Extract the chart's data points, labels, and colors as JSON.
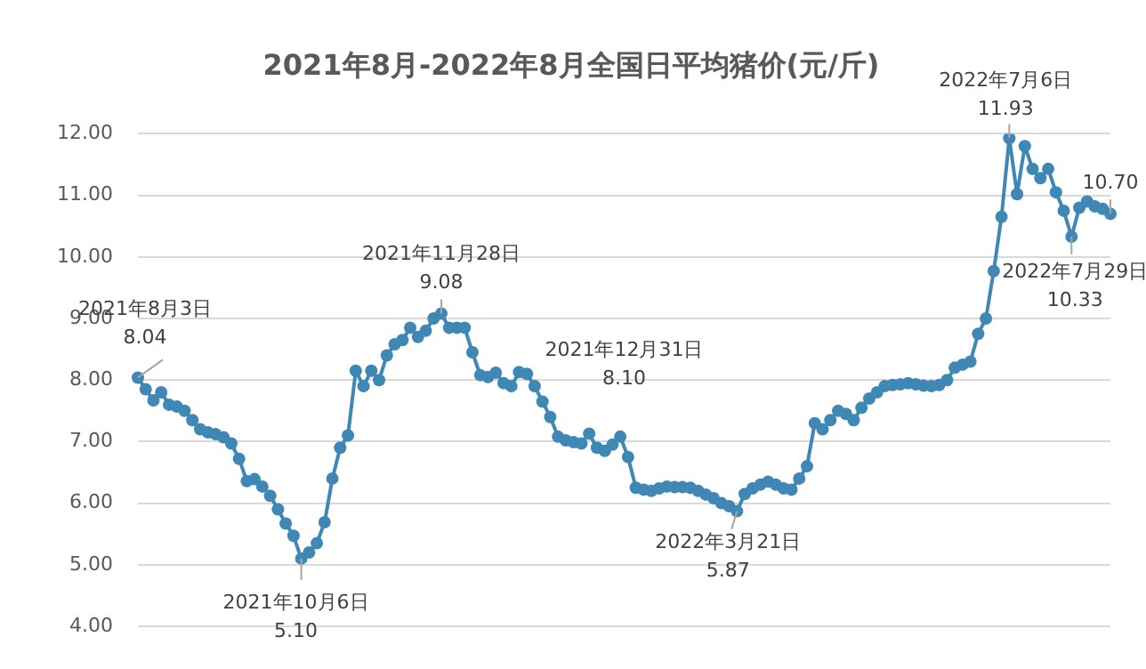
{
  "chart_data": {
    "type": "line",
    "title": "2021年8月-2022年8月全国日平均猪价(元/斤)",
    "categories": [
      null,
      null,
      null,
      null,
      null,
      null,
      null,
      null,
      null,
      null,
      null,
      null,
      null,
      null,
      null,
      null,
      null,
      null,
      null,
      null,
      null,
      null,
      null,
      null,
      null,
      null,
      null,
      null,
      null,
      null,
      null,
      null,
      null,
      null,
      null,
      null,
      null,
      null,
      null,
      null,
      null,
      null,
      null,
      null,
      null,
      null,
      null,
      null,
      null,
      null,
      null,
      null,
      null,
      null,
      null,
      null,
      null,
      null,
      null,
      null,
      null,
      null,
      null,
      null,
      null,
      null,
      null,
      null,
      null,
      null,
      null,
      null,
      null,
      null,
      null,
      null,
      null,
      null,
      null,
      null,
      null,
      null,
      null,
      null,
      null,
      null,
      null,
      null,
      null,
      null,
      null,
      null,
      null,
      null,
      null,
      null,
      null,
      null,
      null,
      null,
      null,
      null,
      null,
      null,
      null,
      null,
      null,
      null,
      null,
      null,
      null,
      null,
      null,
      null,
      null,
      null,
      null,
      null,
      null,
      null,
      null,
      null,
      null,
      null,
      null,
      null
    ],
    "series": [
      {
        "color": "#3f87b5",
        "values": [
          8.04,
          7.85,
          7.67,
          7.8,
          7.6,
          7.57,
          7.5,
          7.35,
          7.2,
          7.15,
          7.12,
          7.07,
          6.97,
          6.72,
          6.36,
          6.39,
          6.27,
          6.12,
          5.9,
          5.67,
          5.47,
          5.1,
          5.2,
          5.35,
          5.69,
          6.4,
          6.9,
          7.1,
          8.15,
          7.9,
          8.15,
          8.0,
          8.4,
          8.58,
          8.65,
          8.85,
          8.7,
          8.8,
          9.0,
          9.08,
          8.85,
          8.85,
          8.85,
          8.45,
          8.08,
          8.05,
          8.12,
          7.95,
          7.9,
          8.13,
          8.1,
          7.9,
          7.65,
          7.4,
          7.08,
          7.02,
          6.99,
          6.97,
          7.13,
          6.9,
          6.85,
          6.95,
          7.08,
          6.75,
          6.25,
          6.22,
          6.2,
          6.24,
          6.27,
          6.26,
          6.26,
          6.25,
          6.2,
          6.14,
          6.08,
          6.0,
          5.95,
          5.87,
          6.15,
          6.24,
          6.3,
          6.35,
          6.3,
          6.24,
          6.22,
          6.4,
          6.6,
          7.3,
          7.2,
          7.35,
          7.5,
          7.45,
          7.35,
          7.55,
          7.7,
          7.8,
          7.9,
          7.92,
          7.93,
          7.95,
          7.93,
          7.91,
          7.9,
          7.92,
          8.0,
          8.2,
          8.25,
          8.3,
          8.75,
          9.0,
          9.77,
          10.65,
          11.93,
          11.02,
          11.8,
          11.43,
          11.28,
          11.43,
          11.05,
          10.75,
          10.33,
          10.8,
          10.9,
          10.82,
          10.78,
          10.7
        ]
      }
    ],
    "ylim": [
      4,
      12
    ],
    "yticks": [
      {
        "value": 4,
        "label": "4.00"
      },
      {
        "value": 5,
        "label": "5.00"
      },
      {
        "value": 6,
        "label": "6.00"
      },
      {
        "value": 7,
        "label": "7.00"
      },
      {
        "value": 8,
        "label": "8.00"
      },
      {
        "value": 9,
        "label": "9.00"
      },
      {
        "value": 10,
        "label": "10.00"
      },
      {
        "value": 11,
        "label": "11.00"
      },
      {
        "value": 12,
        "label": "12.00"
      }
    ],
    "tick_labels": "y",
    "grid": "y",
    "marker": "circle",
    "annotations": [
      {
        "text": "2021年8月3日\n8.04",
        "y": 8.04
      },
      {
        "text": "2021年10月6日\n5.10",
        "y": 5.1
      },
      {
        "text": "2021年11月28日\n9.08",
        "y": 9.08
      },
      "2021年12月31日\n8.10",
      {
        "text": "2022年3月21日\n5.87",
        "y": 5.87
      },
      {
        "text": "2022年7月6日\n11.93",
        "y": 11.93
      },
      {
        "text": "2022年7月29日\n10.33",
        "y": 10.33
      },
      {
        "text": "10.70",
        "y": 10.7
      }
    ]
  }
}
